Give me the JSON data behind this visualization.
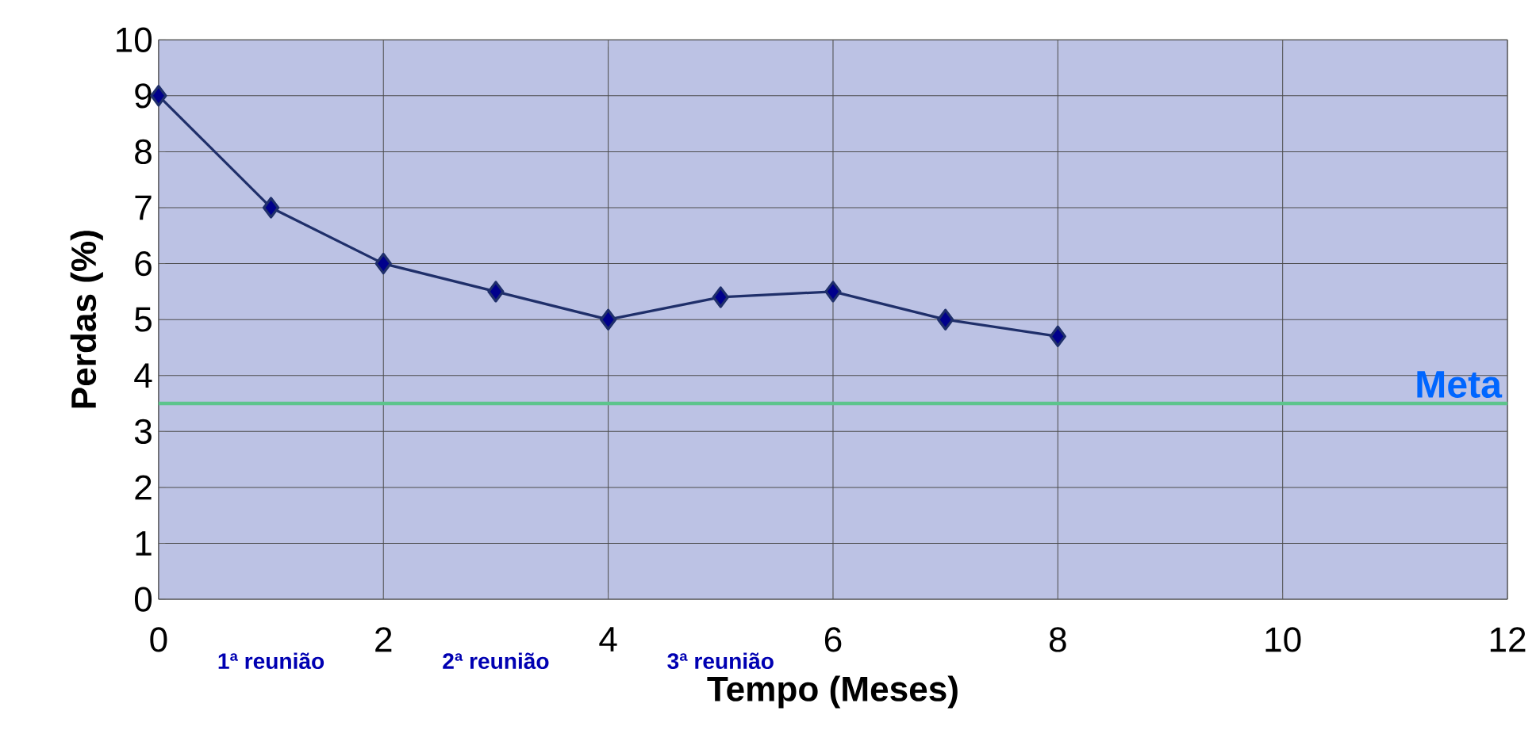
{
  "chart_data": {
    "type": "line",
    "xlabel": "Tempo (Meses)",
    "ylabel": "Perdas (%)",
    "x": [
      0,
      1,
      2,
      3,
      4,
      5,
      6,
      7,
      8
    ],
    "series": [
      {
        "color": "#1f2f6a",
        "values": [
          9,
          7,
          6,
          5.5,
          5,
          5.4,
          5.5,
          5,
          4.7
        ]
      }
    ],
    "xlim": [
      0,
      12
    ],
    "xticks": [
      0,
      2,
      4,
      6,
      8,
      10,
      12
    ],
    "ylim": [
      0,
      10
    ],
    "yticks": [
      0,
      1,
      2,
      3,
      4,
      5,
      6,
      7,
      8,
      9,
      10
    ],
    "grid": true,
    "marker": "diamond",
    "line_style": "solid",
    "ref_lines": [
      {
        "axis": "y",
        "value": 3.5,
        "label": "Meta",
        "color": "#5cc48c"
      }
    ],
    "annotations": [
      "1ª reunião",
      "2ª reunião",
      "3ª reunião"
    ]
  }
}
